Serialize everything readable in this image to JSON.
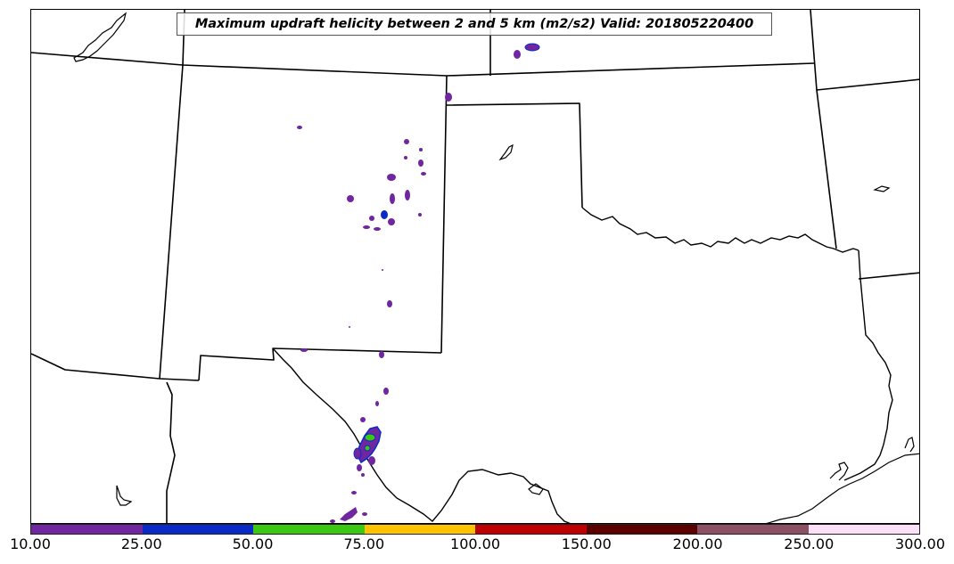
{
  "map": {
    "title": "Maximum updraft helicity between 2 and 5 km (m2/s2) Valid: 201805220400",
    "variable": "updraft helicity",
    "units": "m2/s2",
    "layer": "2 and 5 km",
    "valid_time": "201805220400",
    "colors": {
      "boundary": "#000000",
      "background": "#ffffff"
    }
  },
  "colorbar": {
    "ticks": [
      "10.00",
      "25.00",
      "50.00",
      "75.00",
      "100.00",
      "150.00",
      "200.00",
      "250.00",
      "300.00"
    ],
    "colors": [
      "#7026a0",
      "#0a2ac8",
      "#3cc812",
      "#ffc400",
      "#be0000",
      "#5a0000",
      "#8c5064",
      "#fbe0f8"
    ]
  }
}
